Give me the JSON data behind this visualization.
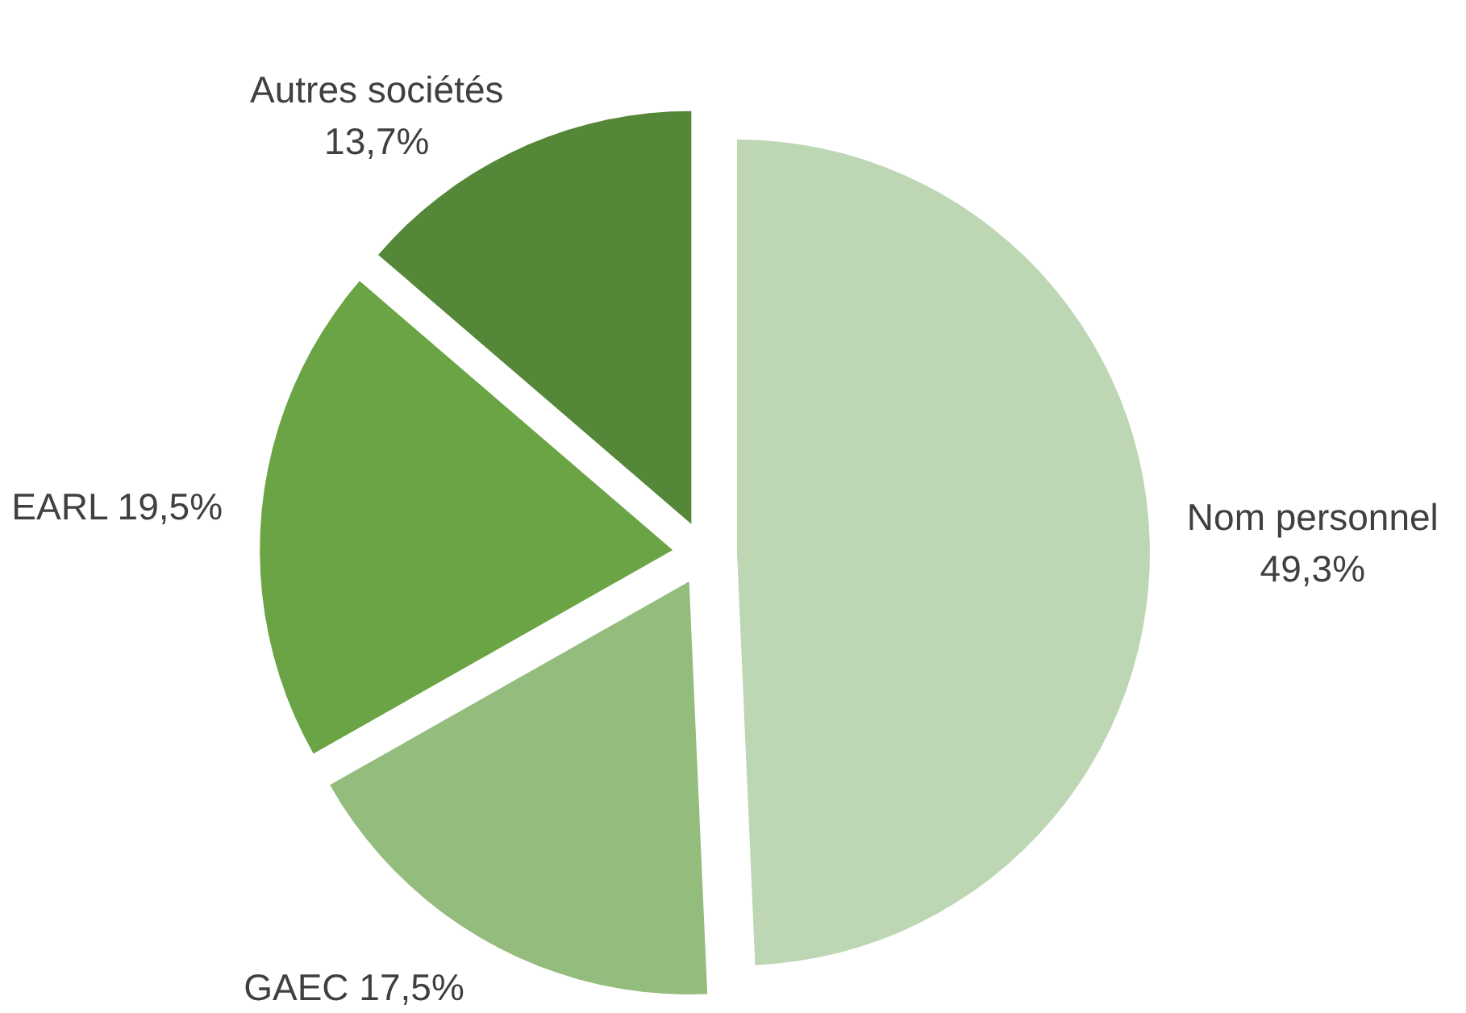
{
  "chart_data": {
    "type": "pie",
    "categories": [
      "Nom personnel",
      "GAEC",
      "EARL",
      "Autres sociétés"
    ],
    "values": [
      49.3,
      17.5,
      19.5,
      13.7
    ],
    "colors": [
      "#bdd6b4",
      "#93bc7d",
      "#6aa444",
      "#548737"
    ],
    "value_labels": [
      "49,3%",
      "17,5%",
      "19,5%",
      "13,7%"
    ]
  }
}
